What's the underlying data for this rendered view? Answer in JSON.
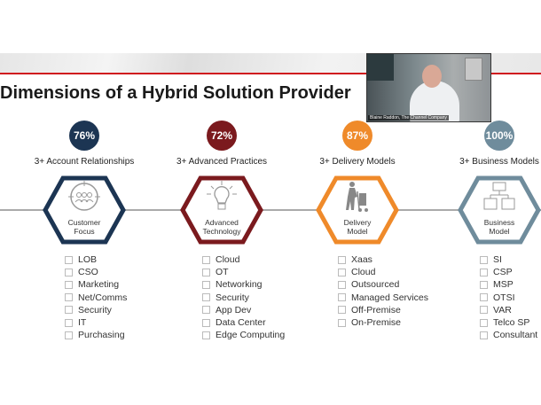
{
  "slide": {
    "title": "Dimensions of a Hybrid Solution Provider"
  },
  "video": {
    "caption": "Blaine Raddon, The Channel Company"
  },
  "columns": [
    {
      "percent": "76%",
      "color": "#1c3553",
      "subtitle": "3+ Account Relationships",
      "hex_label": [
        "Customer",
        "Focus"
      ],
      "icon": "people-target-icon",
      "items": [
        "LOB",
        "CSO",
        "Marketing",
        "Net/Comms",
        "Security",
        "IT",
        "Purchasing"
      ]
    },
    {
      "percent": "72%",
      "color": "#7b1a1e",
      "subtitle": "3+ Advanced Practices",
      "hex_label": [
        "Advanced",
        "Technology"
      ],
      "icon": "lightbulb-icon",
      "items": [
        "Cloud",
        "OT",
        "Networking",
        "Security",
        "App Dev",
        "Data Center",
        "Edge Computing"
      ]
    },
    {
      "percent": "87%",
      "color": "#ef8a2a",
      "subtitle": "3+ Delivery Models",
      "hex_label": [
        "Delivery",
        "Model"
      ],
      "icon": "hand-truck-icon",
      "items": [
        "Xaas",
        "Cloud",
        "Outsourced",
        "Managed Services",
        "Off-Premise",
        "On-Premise"
      ]
    },
    {
      "percent": "100%",
      "color": "#6f8c9c",
      "subtitle": "3+ Business Models",
      "hex_label": [
        "Business",
        "Model"
      ],
      "icon": "org-chart-icon",
      "items": [
        "SI",
        "CSP",
        "MSP",
        "OTSI",
        "VAR",
        "Telco SP",
        "Consultant"
      ]
    }
  ]
}
